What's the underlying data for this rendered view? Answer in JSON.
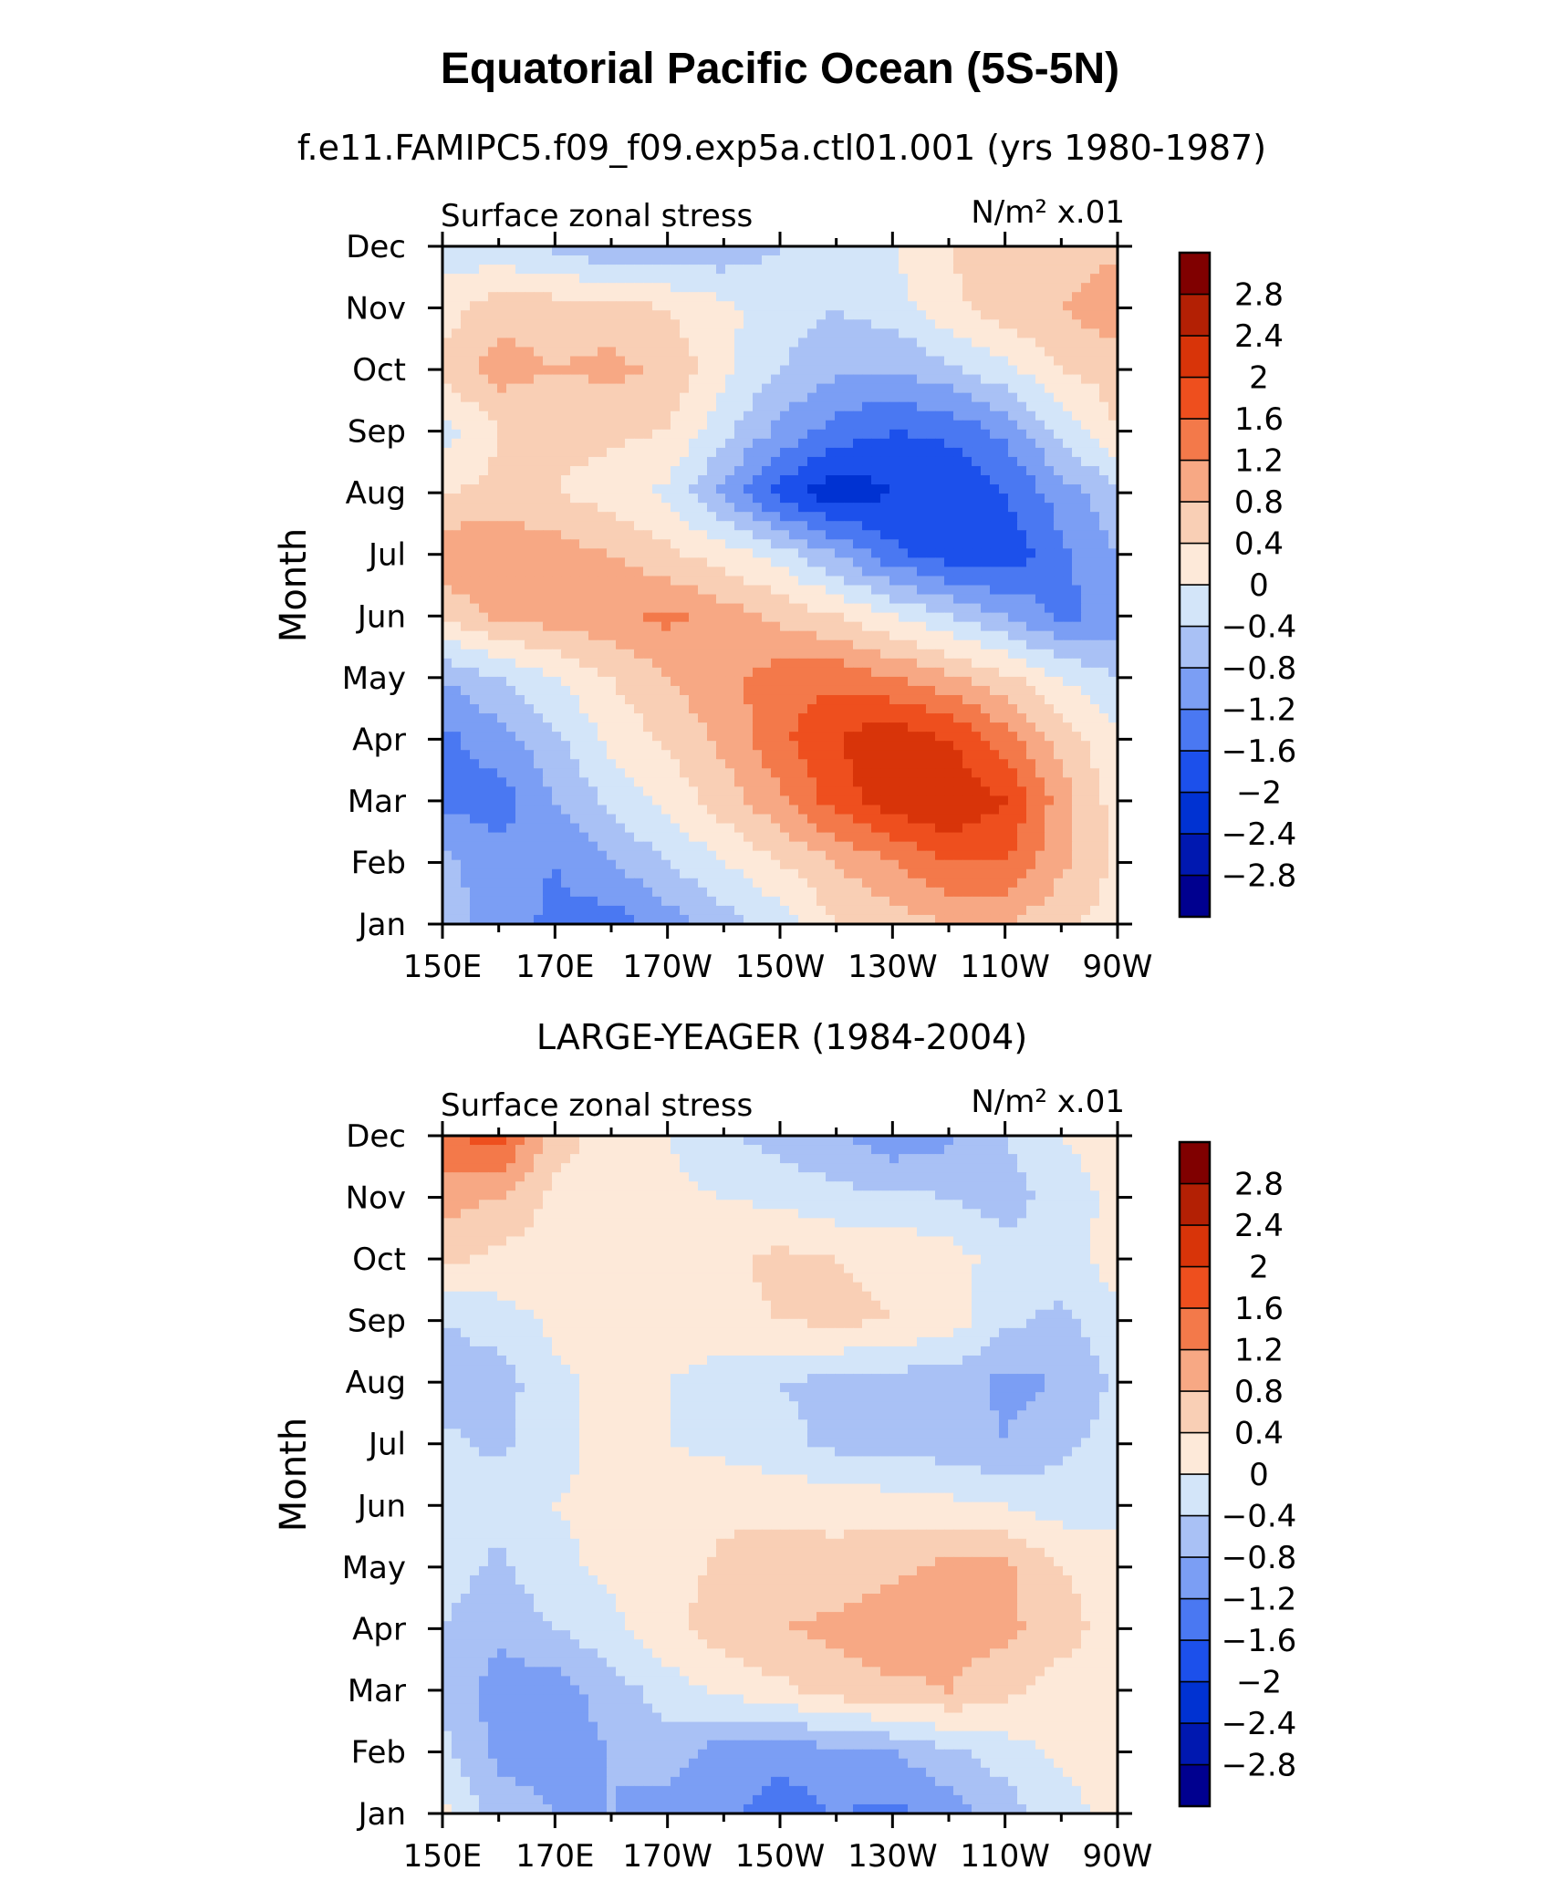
{
  "main_title": "Equatorial Pacific Ocean (5S-5N)",
  "chart_data": [
    {
      "type": "heatmap",
      "subtitle": "f.e11.FAMIPC5.f09_f09.exp5a.ctl01.001 (yrs 1980-1987)",
      "left_label": "Surface zonal stress",
      "right_label": "N/m² x.01",
      "ylabel": "Month",
      "x_tick_labels": [
        "150E",
        "170E",
        "170W",
        "150W",
        "130W",
        "110W",
        "90W"
      ],
      "y_tick_labels": [
        "Jan",
        "Feb",
        "Mar",
        "Apr",
        "May",
        "Jun",
        "Jul",
        "Aug",
        "Sep",
        "Oct",
        "Nov",
        "Dec"
      ],
      "x_longitudes": [
        150,
        160,
        170,
        180,
        190,
        200,
        210,
        220,
        230,
        240,
        250,
        260,
        270
      ],
      "values": [
        [
          -0.6,
          -1.0,
          -1.3,
          -1.4,
          -1.0,
          -0.6,
          -0.2,
          0.4,
          0.6,
          0.8,
          0.8,
          0.5,
          0.2
        ],
        [
          -0.7,
          -1.0,
          -1.2,
          -0.8,
          -0.4,
          0.0,
          0.4,
          0.8,
          1.2,
          1.6,
          1.6,
          0.9,
          0.3
        ],
        [
          -1.3,
          -1.4,
          -0.8,
          -0.3,
          0.1,
          0.6,
          1.1,
          1.8,
          2.2,
          2.4,
          2.0,
          1.0,
          0.2
        ],
        [
          -1.3,
          -1.0,
          -0.5,
          0.1,
          0.5,
          0.9,
          1.5,
          2.0,
          2.3,
          2.0,
          1.4,
          0.6,
          0.1
        ],
        [
          -0.8,
          -0.4,
          0.0,
          0.4,
          0.8,
          1.1,
          1.4,
          1.5,
          1.2,
          0.9,
          0.5,
          0.0,
          -0.4
        ],
        [
          0.5,
          0.9,
          1.0,
          1.1,
          1.3,
          1.0,
          0.7,
          0.4,
          0.0,
          -0.4,
          -0.8,
          -1.3,
          -1.1
        ],
        [
          1.1,
          1.2,
          1.0,
          0.8,
          0.5,
          0.2,
          -0.2,
          -0.8,
          -1.5,
          -1.8,
          -1.9,
          -1.3,
          -0.8
        ],
        [
          0.4,
          0.5,
          0.4,
          0.2,
          -0.1,
          -0.9,
          -1.8,
          -2.3,
          -2.0,
          -2.0,
          -1.6,
          -1.0,
          -0.5
        ],
        [
          -0.2,
          0.4,
          0.5,
          0.5,
          0.4,
          -0.3,
          -0.9,
          -1.4,
          -1.6,
          -1.5,
          -1.1,
          -0.3,
          0.4
        ],
        [
          0.5,
          1.0,
          0.8,
          0.9,
          0.7,
          0.1,
          -0.4,
          -0.7,
          -0.8,
          -0.5,
          -0.1,
          0.4,
          0.6
        ],
        [
          0.2,
          0.6,
          0.6,
          0.6,
          0.4,
          0.1,
          -0.2,
          -0.4,
          -0.2,
          0.3,
          0.6,
          0.8,
          1.1
        ],
        [
          -0.2,
          -0.3,
          -0.5,
          -0.8,
          -0.8,
          -0.7,
          -0.4,
          -0.2,
          0.0,
          0.4,
          0.6,
          0.6,
          0.7
        ]
      ]
    },
    {
      "type": "heatmap",
      "subtitle": "LARGE-YEAGER (1984-2004)",
      "left_label": "Surface zonal stress",
      "right_label": "N/m² x.01",
      "ylabel": "Month",
      "x_tick_labels": [
        "150E",
        "170E",
        "170W",
        "150W",
        "130W",
        "110W",
        "90W"
      ],
      "y_tick_labels": [
        "Jan",
        "Feb",
        "Mar",
        "Apr",
        "May",
        "Jun",
        "Jul",
        "Aug",
        "Sep",
        "Oct",
        "Nov",
        "Dec"
      ],
      "x_longitudes": [
        150,
        160,
        170,
        180,
        190,
        200,
        210,
        220,
        230,
        240,
        250,
        260,
        270
      ],
      "values": [
        [
          0.1,
          -0.6,
          -0.8,
          -0.8,
          -1.0,
          -1.1,
          -1.4,
          -1.2,
          -1.3,
          -1.0,
          -0.6,
          -0.2,
          0.2
        ],
        [
          -0.3,
          -0.9,
          -1.0,
          -0.8,
          -0.6,
          -1.0,
          -1.1,
          -0.9,
          -0.8,
          -0.5,
          -0.2,
          0.1,
          0.2
        ],
        [
          -0.5,
          -1.0,
          -1.0,
          -0.6,
          -0.2,
          0.1,
          0.3,
          0.6,
          0.7,
          0.8,
          0.5,
          0.2,
          0.1
        ],
        [
          -0.4,
          -0.7,
          -0.4,
          -0.1,
          0.3,
          0.6,
          0.8,
          0.9,
          1.1,
          1.0,
          0.9,
          0.6,
          0.2
        ],
        [
          -0.2,
          -0.5,
          -0.1,
          0.1,
          0.2,
          0.5,
          0.6,
          0.5,
          0.7,
          0.9,
          0.9,
          0.4,
          0.1
        ],
        [
          -0.1,
          -0.2,
          0.0,
          0.1,
          0.2,
          0.3,
          0.3,
          0.3,
          0.2,
          0.1,
          0.0,
          -0.2,
          -0.1
        ],
        [
          -0.3,
          -0.5,
          -0.1,
          0.1,
          0.0,
          -0.1,
          -0.3,
          -0.5,
          -0.6,
          -0.6,
          -0.8,
          -0.5,
          -0.2
        ],
        [
          -0.6,
          -0.6,
          -0.1,
          0.1,
          0.0,
          -0.2,
          -0.4,
          -0.5,
          -0.6,
          -0.6,
          -0.9,
          -0.8,
          -0.3
        ],
        [
          -0.4,
          -0.2,
          0.1,
          0.2,
          0.2,
          0.3,
          0.4,
          0.5,
          0.4,
          0.2,
          -0.3,
          -0.5,
          -0.1
        ],
        [
          0.5,
          0.3,
          0.2,
          0.2,
          0.2,
          0.3,
          0.5,
          0.4,
          0.3,
          0.2,
          -0.2,
          -0.2,
          0.2
        ],
        [
          1.0,
          0.8,
          0.3,
          0.1,
          0.1,
          0.0,
          -0.1,
          -0.3,
          -0.3,
          -0.4,
          -0.6,
          -0.2,
          0.1
        ],
        [
          1.5,
          1.8,
          0.6,
          0.2,
          0.0,
          -0.3,
          -0.6,
          -0.7,
          -1.1,
          -0.9,
          -0.4,
          0.0,
          0.2
        ]
      ]
    }
  ],
  "colorbar": {
    "levels": [
      -2.8,
      -2.4,
      -2,
      -1.6,
      -1.2,
      -0.8,
      -0.4,
      0,
      0.4,
      0.8,
      1.2,
      1.6,
      2,
      2.4,
      2.8
    ],
    "labels": [
      "−2.8",
      "−2.4",
      "−2",
      "−1.6",
      "−1.2",
      "−0.8",
      "−0.4",
      "0",
      "0.4",
      "0.8",
      "1.2",
      "1.6",
      "2",
      "2.4",
      "2.8"
    ],
    "colors": [
      "#00008f",
      "#0018b0",
      "#0032d2",
      "#1c50eb",
      "#4a78f2",
      "#7b9ef4",
      "#a9c1f5",
      "#d3e5f9",
      "#fde9d9",
      "#f9cfb5",
      "#f7a884",
      "#f3794a",
      "#ee4f1e",
      "#d83409",
      "#b32004",
      "#800000"
    ]
  }
}
